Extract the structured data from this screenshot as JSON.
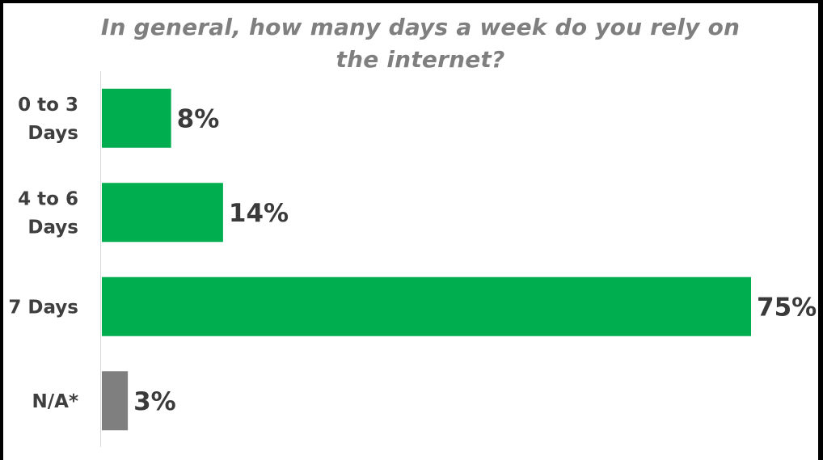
{
  "chart_data": {
    "type": "bar",
    "orientation": "horizontal",
    "title": "In general, how many days a week do you rely on the internet?",
    "categories": [
      "0 to 3 Days",
      "4 to 6 Days",
      "7 Days",
      "N/A*"
    ],
    "category_label_lines": [
      [
        "0 to 3",
        "Days"
      ],
      [
        "4 to 6",
        "Days"
      ],
      [
        "7 Days"
      ],
      [
        "N/A*"
      ]
    ],
    "values": [
      8,
      14,
      75,
      3
    ],
    "value_labels": [
      "8%",
      "14%",
      "75%",
      "3%"
    ],
    "xlim": [
      0,
      75
    ],
    "xlabel": "",
    "ylabel": "",
    "grid": false,
    "legend": "none",
    "colors": [
      "#00ad4f",
      "#00ad4f",
      "#00ad4f",
      "#7f7f7f"
    ]
  }
}
